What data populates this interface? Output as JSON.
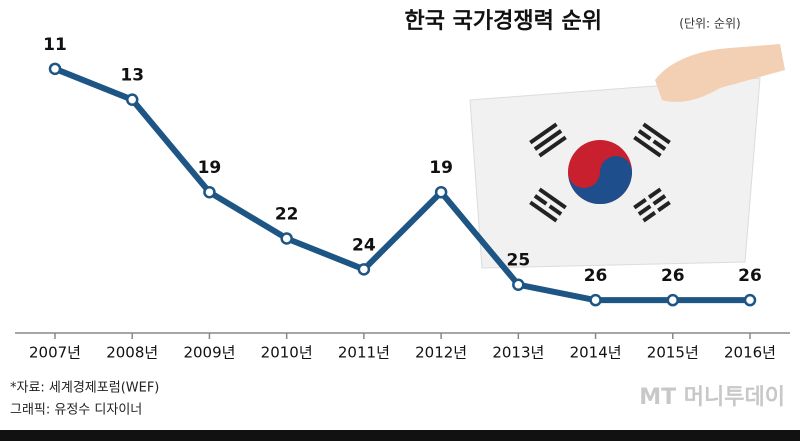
{
  "chart_data": {
    "type": "line",
    "title": "한국 국가경쟁력 순위",
    "subtitle": "(단위: 순위)",
    "categories": [
      "2007년",
      "2008년",
      "2009년",
      "2010년",
      "2011년",
      "2012년",
      "2013년",
      "2014년",
      "2015년",
      "2016년"
    ],
    "values": [
      11,
      13,
      19,
      22,
      24,
      19,
      25,
      26,
      26,
      26
    ],
    "color": "#1d5585",
    "ylim": [
      28,
      9
    ]
  },
  "source": "*자료: 세계경제포럼(WEF)",
  "credit": "그래픽: 유정수 디자이너",
  "watermark": "MT 머니투데이"
}
